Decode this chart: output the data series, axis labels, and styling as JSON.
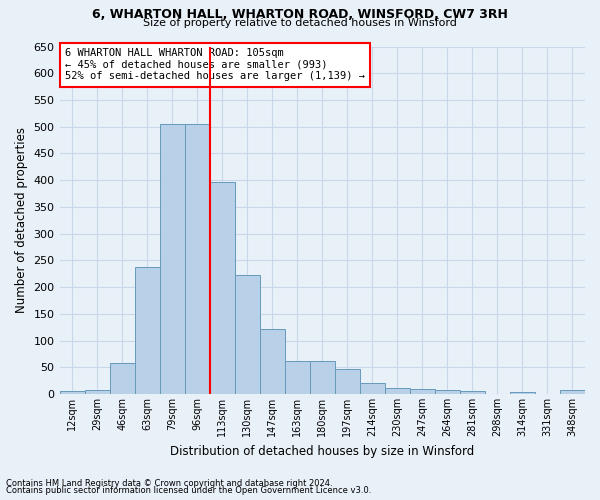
{
  "title1": "6, WHARTON HALL, WHARTON ROAD, WINSFORD, CW7 3RH",
  "title2": "Size of property relative to detached houses in Winsford",
  "xlabel": "Distribution of detached houses by size in Winsford",
  "ylabel": "Number of detached properties",
  "footnote1": "Contains HM Land Registry data © Crown copyright and database right 2024.",
  "footnote2": "Contains public sector information licensed under the Open Government Licence v3.0.",
  "bar_labels": [
    "12sqm",
    "29sqm",
    "46sqm",
    "63sqm",
    "79sqm",
    "96sqm",
    "113sqm",
    "130sqm",
    "147sqm",
    "163sqm",
    "180sqm",
    "197sqm",
    "214sqm",
    "230sqm",
    "247sqm",
    "264sqm",
    "281sqm",
    "298sqm",
    "314sqm",
    "331sqm",
    "348sqm"
  ],
  "bar_values": [
    5,
    8,
    58,
    238,
    505,
    505,
    397,
    222,
    121,
    62,
    62,
    46,
    21,
    11,
    9,
    8,
    5,
    0,
    3,
    0,
    7
  ],
  "bar_color": "#b8d0e8",
  "bar_edge_color": "#6699bb",
  "grid_color": "#c8d8e8",
  "background_color": "#e8f0f8",
  "vline_color": "red",
  "annotation_text": "6 WHARTON HALL WHARTON ROAD: 105sqm\n← 45% of detached houses are smaller (993)\n52% of semi-detached houses are larger (1,139) →",
  "annotation_box_color": "white",
  "annotation_box_edge": "red",
  "ylim": [
    0,
    650
  ],
  "yticks": [
    0,
    50,
    100,
    150,
    200,
    250,
    300,
    350,
    400,
    450,
    500,
    550,
    600,
    650
  ]
}
